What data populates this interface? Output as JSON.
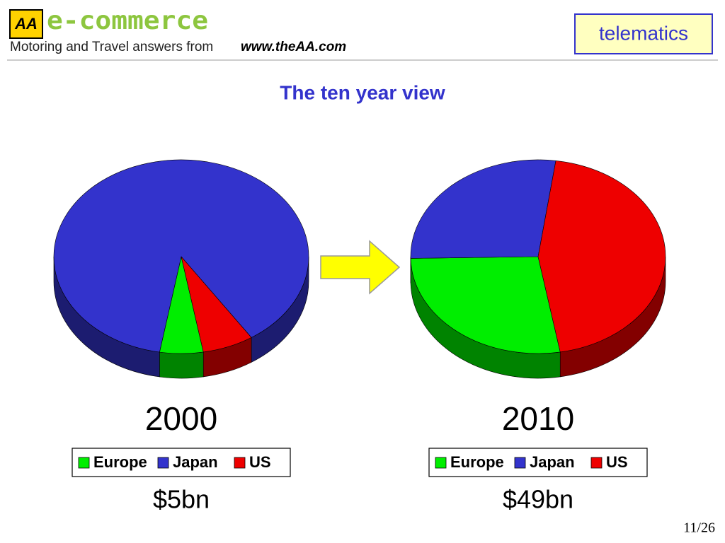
{
  "header": {
    "logo": "AA",
    "brand": "e-commerce",
    "tagline": "Motoring and Travel answers from",
    "url": "www.theAA.com",
    "section": "telematics"
  },
  "title": "The ten year view",
  "chart_data": [
    {
      "type": "pie",
      "title": "2000",
      "categories": [
        "Europe",
        "Japan",
        "US"
      ],
      "values": [
        5.5,
        88,
        6.5
      ],
      "colors": [
        "#00ee00",
        "#3333cc",
        "#ee0000"
      ],
      "legend": "bottom",
      "total_label": "$5bn"
    },
    {
      "type": "pie",
      "title": "2010",
      "categories": [
        "Europe",
        "Japan",
        "US"
      ],
      "values": [
        27.5,
        27.5,
        45
      ],
      "colors": [
        "#00ee00",
        "#3333cc",
        "#ee0000"
      ],
      "legend": "bottom",
      "total_label": "$49bn"
    }
  ],
  "page_number": "11/26"
}
